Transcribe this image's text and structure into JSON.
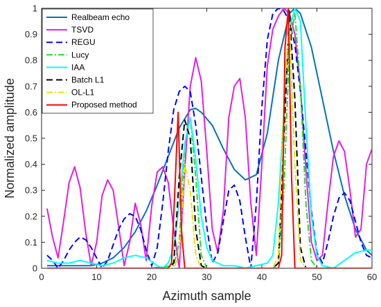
{
  "chart_data": {
    "type": "line",
    "xlabel": "Azimuth sample",
    "ylabel": "Normalized amplitude",
    "xlim": [
      0,
      60
    ],
    "ylim": [
      0,
      1
    ],
    "xticks": [
      0,
      10,
      20,
      30,
      40,
      50,
      60
    ],
    "yticks": [
      0,
      0.1,
      0.2,
      0.3,
      0.4,
      0.5,
      0.6,
      0.7,
      0.8,
      0.9,
      1
    ],
    "grid": false,
    "legend_position": "top-left",
    "series": [
      {
        "name": "Realbeam echo",
        "color": "#0072BD",
        "dash": "solid",
        "x": [
          1,
          3,
          5,
          7,
          9,
          11,
          13,
          15,
          17,
          19,
          21,
          23,
          25,
          27,
          28,
          29,
          31,
          33,
          35,
          37,
          39,
          41,
          43,
          45,
          46,
          47,
          49,
          51,
          53,
          55,
          57,
          59,
          60
        ],
        "y": [
          0.01,
          0.01,
          0.01,
          0.01,
          0.01,
          0.02,
          0.04,
          0.08,
          0.14,
          0.22,
          0.32,
          0.43,
          0.54,
          0.61,
          0.615,
          0.6,
          0.55,
          0.46,
          0.38,
          0.34,
          0.36,
          0.52,
          0.8,
          0.98,
          1.0,
          0.98,
          0.85,
          0.65,
          0.45,
          0.28,
          0.15,
          0.07,
          0.05
        ]
      },
      {
        "name": "TSVD",
        "color": "#E61BE6",
        "dash": "solid",
        "x": [
          1,
          2,
          3,
          4,
          5,
          6,
          7,
          8,
          9,
          10,
          11,
          12,
          13,
          14,
          15,
          16,
          17,
          18,
          19,
          20,
          21,
          22,
          23,
          24,
          25,
          26,
          27,
          28,
          29,
          30,
          31,
          32,
          33,
          34,
          35,
          36,
          37,
          38,
          39,
          40,
          41,
          42,
          43,
          44,
          45,
          46,
          47,
          48,
          49,
          50,
          51,
          52,
          53,
          54,
          55,
          56,
          57,
          58,
          59,
          60
        ],
        "y": [
          0.23,
          0.12,
          0.04,
          0.18,
          0.33,
          0.39,
          0.31,
          0.14,
          0.01,
          0.1,
          0.28,
          0.34,
          0.3,
          0.16,
          0.01,
          0.1,
          0.25,
          0.17,
          0.03,
          0.24,
          0.37,
          0.39,
          0.33,
          0.15,
          0.0,
          0.38,
          0.7,
          0.81,
          0.72,
          0.45,
          0.15,
          0.06,
          0.22,
          0.58,
          0.7,
          0.73,
          0.58,
          0.25,
          0.05,
          0.4,
          0.78,
          0.92,
          0.97,
          1.0,
          0.98,
          0.9,
          0.7,
          0.38,
          0.1,
          0.03,
          0.05,
          0.25,
          0.43,
          0.49,
          0.45,
          0.3,
          0.12,
          0.15,
          0.4,
          0.46
        ]
      },
      {
        "name": "REGU",
        "color": "#0000FF",
        "dash": "dashed",
        "x": [
          1,
          2,
          3,
          4,
          5,
          6,
          7,
          8,
          9,
          10,
          11,
          12,
          13,
          14,
          15,
          16,
          17,
          18,
          19,
          20,
          21,
          22,
          23,
          24,
          25,
          26,
          27,
          28,
          29,
          30,
          31,
          32,
          33,
          34,
          35,
          36,
          37,
          38,
          39,
          40,
          41,
          42,
          43,
          44,
          45,
          46,
          47,
          48,
          49,
          50,
          51,
          52,
          53,
          54,
          55,
          56,
          57,
          58,
          59,
          60
        ],
        "y": [
          0.05,
          0.03,
          0.0,
          0.03,
          0.07,
          0.1,
          0.12,
          0.11,
          0.08,
          0.04,
          0.0,
          0.03,
          0.09,
          0.15,
          0.19,
          0.21,
          0.2,
          0.15,
          0.07,
          0.01,
          0.08,
          0.25,
          0.45,
          0.61,
          0.68,
          0.7,
          0.68,
          0.55,
          0.35,
          0.16,
          0.02,
          0.06,
          0.18,
          0.3,
          0.32,
          0.26,
          0.12,
          0.0,
          0.25,
          0.62,
          0.88,
          0.98,
          1.0,
          0.99,
          0.95,
          0.86,
          0.68,
          0.45,
          0.22,
          0.06,
          0.02,
          0.1,
          0.2,
          0.27,
          0.29,
          0.26,
          0.18,
          0.1,
          0.05,
          0.04
        ]
      },
      {
        "name": "Lucy",
        "color": "#22DD22",
        "dash": "dashdot",
        "x": [
          1,
          10,
          20,
          24,
          25,
          26,
          27,
          28,
          29,
          30,
          35,
          42,
          43,
          44,
          45,
          46,
          47,
          48,
          49,
          50,
          52,
          60
        ],
        "y": [
          0,
          0,
          0,
          0.01,
          0.1,
          0.48,
          0.58,
          0.35,
          0.05,
          0.0,
          0,
          0,
          0.02,
          0.3,
          0.85,
          0.98,
          0.7,
          0.25,
          0.03,
          0.0,
          0,
          0
        ]
      },
      {
        "name": "IAA",
        "color": "#00FFFF",
        "dash": "solid",
        "x": [
          1,
          3,
          5,
          7,
          9,
          11,
          13,
          15,
          17,
          19,
          21,
          22,
          23,
          24,
          25,
          26,
          27,
          28,
          29,
          30,
          31,
          33,
          35,
          37,
          39,
          41,
          42,
          43,
          44,
          45,
          46,
          47,
          48,
          49,
          50,
          51,
          53,
          55,
          57,
          59,
          60
        ],
        "y": [
          0.03,
          0.02,
          0.02,
          0.03,
          0.02,
          0.01,
          0.02,
          0.04,
          0.05,
          0.04,
          0.01,
          0.0,
          0.02,
          0.08,
          0.25,
          0.48,
          0.58,
          0.42,
          0.2,
          0.08,
          0.03,
          0.01,
          0.01,
          0.0,
          0.01,
          0.02,
          0.05,
          0.25,
          0.6,
          0.92,
          1.0,
          0.95,
          0.55,
          0.2,
          0.05,
          0.01,
          0.0,
          0.03,
          0.06,
          0.07,
          0.07
        ]
      },
      {
        "name": "Batch L1",
        "color": "#000000",
        "dash": "dashed",
        "x": [
          1,
          10,
          20,
          23,
          24,
          25,
          26,
          27,
          28,
          29,
          30,
          35,
          40,
          42,
          43,
          44,
          45,
          46,
          47,
          48,
          50,
          60
        ],
        "y": [
          0,
          0,
          0,
          0,
          0.02,
          0.35,
          0.57,
          0.5,
          0.15,
          0.01,
          0,
          0,
          0,
          0,
          0.02,
          0.5,
          0.99,
          0.65,
          0.08,
          0.0,
          0,
          0
        ]
      },
      {
        "name": "OL-L1",
        "color": "#E6E600",
        "dash": "dashdot",
        "x": [
          1,
          10,
          20,
          24,
          25,
          26,
          27,
          28,
          29,
          30,
          35,
          42,
          43,
          44,
          45,
          46,
          47,
          48,
          50,
          60
        ],
        "y": [
          0,
          0,
          0,
          0,
          0.05,
          0.4,
          0.3,
          0.05,
          0.0,
          0,
          0,
          0,
          0.05,
          0.65,
          0.95,
          0.4,
          0.03,
          0.0,
          0,
          0
        ]
      },
      {
        "name": "Proposed method",
        "color": "#FF0000",
        "dash": "solid",
        "x": [
          1,
          10,
          20,
          23,
          23.6,
          24.2,
          24.8,
          25.4,
          26,
          30,
          40,
          43,
          43.6,
          44.2,
          44.8,
          45.4,
          46,
          50,
          60
        ],
        "y": [
          0,
          0,
          0,
          0,
          0.02,
          0.3,
          0.6,
          0.15,
          0.0,
          0,
          0,
          0,
          0.05,
          0.85,
          1.0,
          0.35,
          0.0,
          0,
          0
        ]
      }
    ]
  }
}
